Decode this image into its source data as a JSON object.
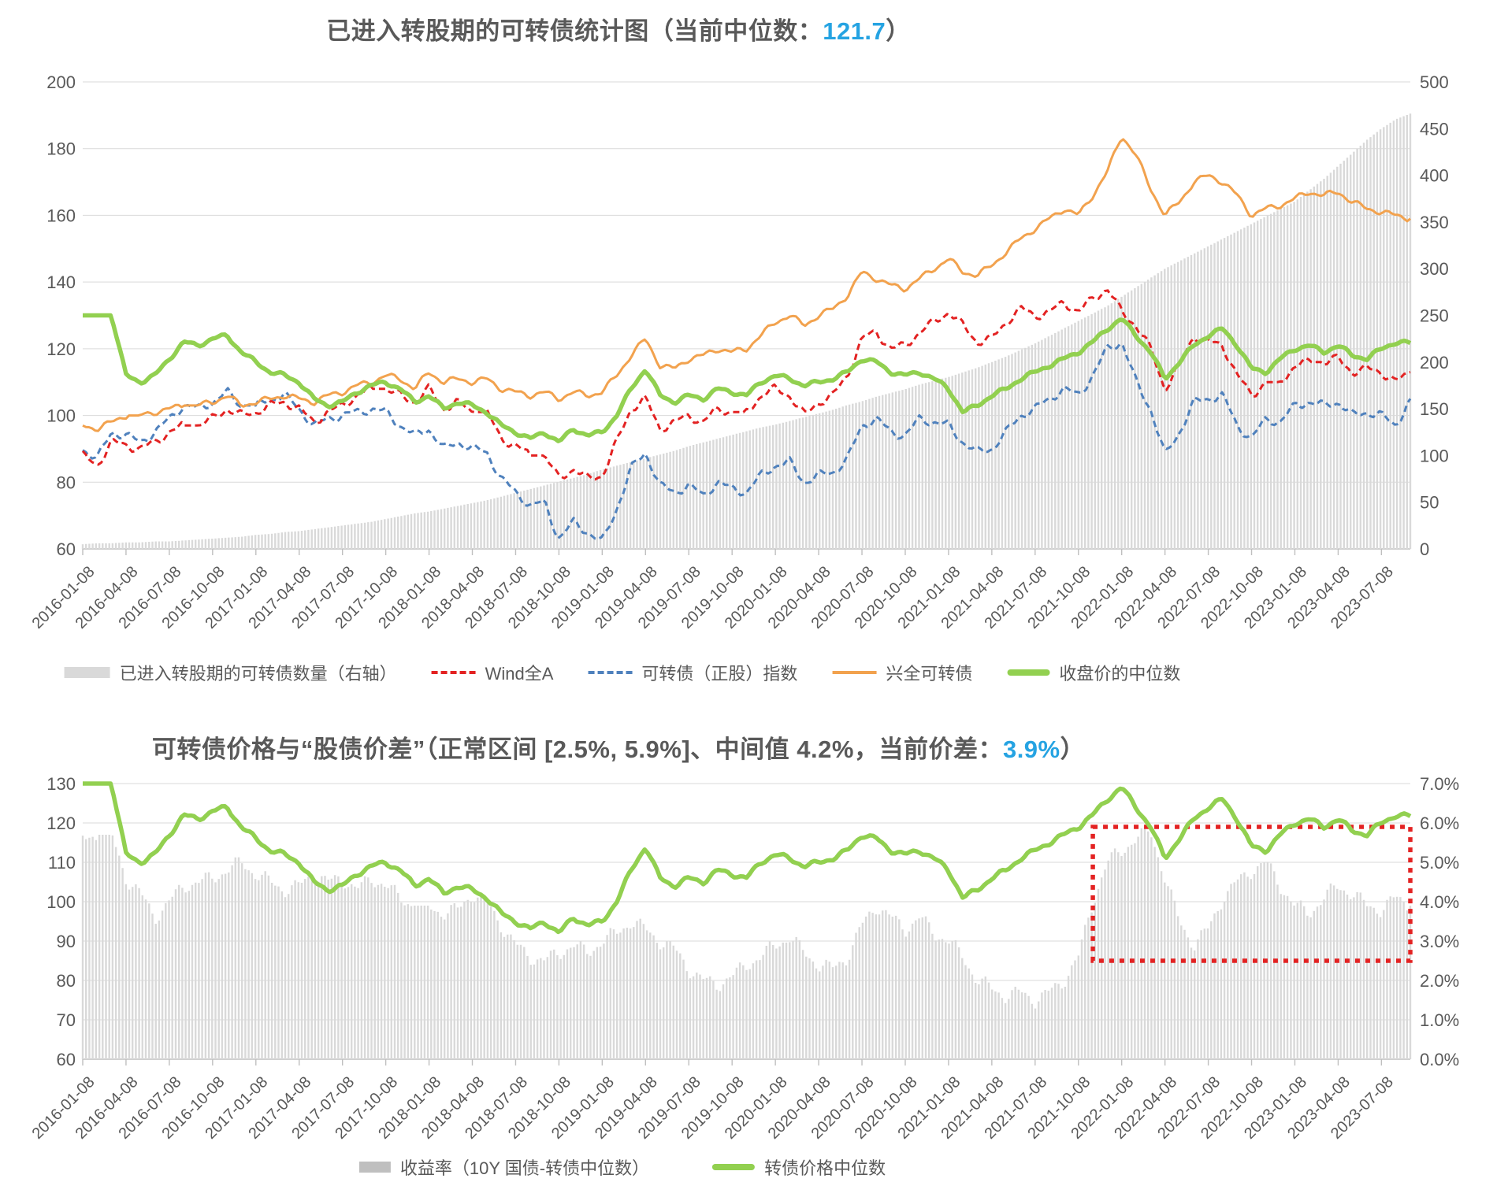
{
  "colors": {
    "text": "#595959",
    "grid": "#d9d9d9",
    "axis": "#bfbfbf",
    "bars": "#d9d9d9",
    "bars_legend_bottom": "#bfbfbf",
    "red": "#e32222",
    "blue": "#4f81bd",
    "orange": "#f2a24e",
    "green": "#92d050",
    "highlight_blue": "#25a3e2"
  },
  "top_chart": {
    "title": {
      "prefix": "已进入转股期的可转债统计图（当前中位数：",
      "highlight": "121.7",
      "suffix": "）"
    },
    "left_axis_ticks": [
      200,
      180,
      160,
      140,
      120,
      100,
      80,
      60
    ],
    "right_axis_ticks": [
      500,
      450,
      400,
      350,
      300,
      250,
      200,
      150,
      100,
      50,
      0
    ],
    "legend": [
      {
        "label": "已进入转股期的可转债数量（右轴）",
        "swatch": "bar",
        "color_key": "bars"
      },
      {
        "label": "Wind全A",
        "swatch": "dashed",
        "color_key": "red"
      },
      {
        "label": "可转债（正股）指数",
        "swatch": "dashed",
        "color_key": "blue"
      },
      {
        "label": "兴全可转债",
        "swatch": "line",
        "color_key": "orange"
      },
      {
        "label": "收盘价的中位数",
        "swatch": "thick-line",
        "color_key": "green"
      }
    ]
  },
  "bottom_chart": {
    "title": {
      "prefix": "可转债价格与“股债价差”（正常区间 [2.5%, 5.9%]、中间值 4.2%，当前价差：",
      "highlight": "3.9%",
      "suffix": "）"
    },
    "left_axis_ticks": [
      130,
      120,
      110,
      100,
      90,
      80,
      70,
      60
    ],
    "right_axis_ticks": [
      "7.0%",
      "6.0%",
      "5.0%",
      "4.0%",
      "3.0%",
      "2.0%",
      "1.0%",
      "0.0%"
    ],
    "normal_range": {
      "low_pct": 2.5,
      "high_pct": 5.9,
      "start_month": "2021-11"
    },
    "legend": [
      {
        "label": "收益率（10Y 国债-转债中位数）",
        "swatch": "bar-small",
        "color_key": "bars_legend_bottom"
      },
      {
        "label": "转债价格中位数",
        "swatch": "thick-line",
        "color_key": "green"
      }
    ]
  },
  "x_quarter_labels": [
    "2016-01-08",
    "2016-04-08",
    "2016-07-08",
    "2016-10-08",
    "2017-01-08",
    "2017-04-08",
    "2017-07-08",
    "2017-10-08",
    "2018-01-08",
    "2018-04-08",
    "2018-07-08",
    "2018-10-08",
    "2019-01-08",
    "2019-04-08",
    "2019-07-08",
    "2019-10-08",
    "2020-01-08",
    "2020-04-08",
    "2020-07-08",
    "2020-10-08",
    "2021-01-08",
    "2021-04-08",
    "2021-07-08",
    "2021-10-08",
    "2022-01-08",
    "2022-04-08",
    "2022-07-08",
    "2022-10-08",
    "2023-01-08",
    "2023-04-08",
    "2023-07-08"
  ],
  "months": [
    "2016-01",
    "2016-02",
    "2016-03",
    "2016-04",
    "2016-05",
    "2016-06",
    "2016-07",
    "2016-08",
    "2016-09",
    "2016-10",
    "2016-11",
    "2016-12",
    "2017-01",
    "2017-02",
    "2017-03",
    "2017-04",
    "2017-05",
    "2017-06",
    "2017-07",
    "2017-08",
    "2017-09",
    "2017-10",
    "2017-11",
    "2017-12",
    "2018-01",
    "2018-02",
    "2018-03",
    "2018-04",
    "2018-05",
    "2018-06",
    "2018-07",
    "2018-08",
    "2018-09",
    "2018-10",
    "2018-11",
    "2018-12",
    "2019-01",
    "2019-02",
    "2019-03",
    "2019-04",
    "2019-05",
    "2019-06",
    "2019-07",
    "2019-08",
    "2019-09",
    "2019-10",
    "2019-11",
    "2019-12",
    "2020-01",
    "2020-02",
    "2020-03",
    "2020-04",
    "2020-05",
    "2020-06",
    "2020-07",
    "2020-08",
    "2020-09",
    "2020-10",
    "2020-11",
    "2020-12",
    "2021-01",
    "2021-02",
    "2021-03",
    "2021-04",
    "2021-05",
    "2021-06",
    "2021-07",
    "2021-08",
    "2021-09",
    "2021-10",
    "2021-11",
    "2021-12",
    "2022-01",
    "2022-02",
    "2022-03",
    "2022-04",
    "2022-05",
    "2022-06",
    "2022-07",
    "2022-08",
    "2022-09",
    "2022-10",
    "2022-11",
    "2022-12",
    "2023-01",
    "2023-02",
    "2023-03",
    "2023-04",
    "2023-05",
    "2023-06",
    "2023-07",
    "2023-08",
    "2023-09"
  ],
  "chart_data": [
    {
      "type": "combo",
      "title": "已进入转股期的可转债统计图（当前中位数：121.7）",
      "x": "months",
      "left_axis": {
        "min": 60,
        "max": 200,
        "step": 20
      },
      "right_axis": {
        "min": 0,
        "max": 500,
        "step": 50
      },
      "grid": true,
      "legend_position": "bottom",
      "series": [
        {
          "name": "已进入转股期的可转债数量（右轴）",
          "type": "bar",
          "axis": "right",
          "color_key": "bars",
          "values": [
            5,
            6,
            6,
            7,
            7,
            8,
            8,
            9,
            10,
            11,
            12,
            13,
            15,
            16,
            18,
            19,
            21,
            23,
            25,
            27,
            29,
            32,
            35,
            38,
            40,
            43,
            46,
            49,
            52,
            56,
            60,
            64,
            68,
            72,
            76,
            80,
            85,
            89,
            93,
            97,
            101,
            105,
            110,
            114,
            118,
            122,
            126,
            130,
            133,
            137,
            141,
            145,
            149,
            154,
            158,
            163,
            167,
            171,
            176,
            180,
            184,
            189,
            194,
            200,
            206,
            213,
            220,
            228,
            236,
            244,
            252,
            260,
            270,
            280,
            290,
            300,
            308,
            316,
            324,
            332,
            340,
            348,
            356,
            364,
            372,
            384,
            396,
            410,
            424,
            438,
            450,
            460,
            466
          ]
        },
        {
          "name": "Wind全A",
          "type": "line",
          "style": "dashed",
          "axis": "left",
          "color_key": "red",
          "values": [
            88,
            85,
            92,
            91,
            90,
            92,
            95,
            97,
            97,
            99,
            102,
            100,
            101,
            103,
            104,
            102,
            98,
            101,
            103,
            106,
            108,
            108,
            106,
            104,
            108,
            102,
            104,
            101,
            101,
            93,
            91,
            88,
            88,
            81,
            84,
            81,
            82,
            92,
            102,
            105,
            96,
            98,
            100,
            98,
            102,
            101,
            101,
            106,
            108,
            106,
            100,
            104,
            106,
            112,
            123,
            125,
            120,
            121,
            125,
            128,
            131,
            127,
            122,
            123,
            128,
            132,
            130,
            131,
            134,
            131,
            135,
            138,
            131,
            127,
            120,
            108,
            115,
            124,
            122,
            121,
            112,
            106,
            110,
            110,
            115,
            116,
            116,
            117,
            113,
            114,
            113,
            110,
            113
          ]
        },
        {
          "name": "可转债（正股）指数",
          "type": "line",
          "style": "dashed",
          "axis": "left",
          "color_key": "blue",
          "values": [
            90,
            87,
            95,
            94,
            92,
            95,
            99,
            103,
            102,
            104,
            107,
            103,
            103,
            105,
            106,
            102,
            97,
            99,
            100,
            101,
            102,
            101,
            97,
            94,
            96,
            90,
            92,
            90,
            89,
            81,
            77,
            73,
            74,
            63,
            68,
            65,
            62,
            72,
            84,
            89,
            79,
            77,
            79,
            76,
            80,
            78,
            77,
            82,
            85,
            86,
            80,
            82,
            83,
            87,
            97,
            99,
            95,
            94,
            99,
            98,
            97,
            92,
            89,
            90,
            95,
            100,
            102,
            105,
            108,
            106,
            112,
            120,
            122,
            110,
            102,
            88,
            95,
            104,
            105,
            106,
            97,
            93,
            99,
            98,
            103,
            104,
            103,
            104,
            100,
            101,
            100,
            97,
            105
          ]
        },
        {
          "name": "兴全可转债",
          "type": "line",
          "style": "solid",
          "axis": "left",
          "color_key": "orange",
          "values": [
            97,
            96,
            98,
            100,
            100,
            101,
            102,
            103,
            103,
            104,
            106,
            103,
            104,
            105,
            106,
            105,
            104,
            106,
            107,
            109,
            110,
            112,
            111,
            108,
            113,
            110,
            111,
            110,
            111,
            108,
            107,
            106,
            107,
            105,
            107,
            106,
            107,
            112,
            118,
            123,
            115,
            114,
            117,
            118,
            120,
            119,
            120,
            124,
            128,
            130,
            127,
            130,
            132,
            136,
            143,
            141,
            139,
            138,
            141,
            144,
            147,
            143,
            142,
            145,
            149,
            153,
            156,
            159,
            162,
            160,
            166,
            173,
            184,
            178,
            168,
            160,
            164,
            170,
            172,
            170,
            166,
            160,
            162,
            163,
            165,
            167,
            166,
            167,
            164,
            162,
            161,
            160,
            159
          ]
        },
        {
          "name": "收盘价的中位数",
          "type": "line",
          "style": "thick",
          "axis": "left",
          "color_key": "green",
          "values": [
            130,
            130,
            130,
            112,
            110,
            112,
            117,
            122,
            121,
            123,
            124,
            119,
            116,
            113,
            112,
            110,
            105,
            103,
            104,
            107,
            109,
            110,
            108,
            104,
            106,
            102,
            104,
            103,
            101,
            97,
            95,
            93,
            95,
            92,
            96,
            94,
            95,
            100,
            108,
            114,
            106,
            104,
            106,
            105,
            108,
            107,
            106,
            110,
            112,
            111,
            109,
            110,
            111,
            113,
            117,
            116,
            113,
            112,
            113,
            111,
            108,
            101,
            103,
            106,
            108,
            111,
            113,
            115,
            117,
            119,
            122,
            126,
            129,
            124,
            119,
            111,
            116,
            121,
            124,
            126,
            121,
            114,
            113,
            117,
            120,
            121,
            119,
            121,
            118,
            117,
            120,
            122,
            121.7
          ]
        }
      ]
    },
    {
      "type": "combo",
      "title": "可转债价格与“股债价差”（正常区间 [2.5%, 5.9%]、中间值 4.2%，当前价差：3.9%）",
      "x": "months",
      "left_axis": {
        "min": 60,
        "max": 130,
        "step": 10
      },
      "right_axis": {
        "min": 0,
        "max": 7,
        "step": 1,
        "unit": "%"
      },
      "grid": true,
      "annotation_box": {
        "from_month": "2021-11",
        "to": "plot-right-edge",
        "low_pct": 2.5,
        "high_pct": 5.9
      },
      "series": [
        {
          "name": "收益率（10Y 国债-转债中位数）",
          "type": "bar",
          "axis": "right",
          "unit": "%",
          "color_key": "bars",
          "values": [
            5.6,
            5.7,
            5.7,
            4.6,
            4.2,
            3.6,
            4.0,
            4.4,
            4.5,
            4.6,
            4.8,
            5.0,
            4.7,
            4.5,
            4.3,
            4.4,
            4.7,
            4.5,
            4.6,
            4.3,
            4.6,
            4.4,
            4.1,
            3.9,
            3.9,
            3.7,
            3.8,
            4.2,
            4.0,
            3.4,
            2.9,
            2.6,
            2.5,
            2.7,
            2.9,
            2.7,
            3.0,
            3.2,
            3.5,
            3.3,
            3.0,
            2.8,
            2.3,
            2.0,
            1.9,
            2.1,
            2.4,
            2.6,
            2.9,
            3.1,
            2.7,
            2.4,
            2.3,
            2.6,
            3.4,
            3.9,
            3.6,
            3.3,
            3.6,
            3.2,
            3.0,
            2.6,
            2.0,
            1.8,
            1.6,
            1.7,
            1.5,
            1.7,
            2.0,
            2.6,
            4.0,
            5.0,
            5.3,
            5.6,
            5.8,
            4.6,
            3.5,
            2.9,
            3.3,
            4.1,
            4.5,
            4.8,
            5.0,
            4.4,
            3.9,
            3.7,
            4.1,
            4.4,
            4.2,
            3.9,
            3.8,
            4.1,
            3.9
          ]
        },
        {
          "name": "转债价格中位数",
          "type": "line",
          "style": "thick",
          "axis": "left",
          "color_key": "green",
          "values": [
            130,
            130,
            130,
            112,
            110,
            112,
            117,
            122,
            121,
            123,
            124,
            119,
            116,
            113,
            112,
            110,
            105,
            103,
            104,
            107,
            109,
            110,
            108,
            104,
            106,
            102,
            104,
            103,
            101,
            97,
            95,
            93,
            95,
            92,
            96,
            94,
            95,
            100,
            108,
            114,
            106,
            104,
            106,
            105,
            108,
            107,
            106,
            110,
            112,
            111,
            109,
            110,
            111,
            113,
            117,
            116,
            113,
            112,
            113,
            111,
            108,
            101,
            103,
            106,
            108,
            111,
            113,
            115,
            117,
            119,
            122,
            126,
            129,
            124,
            119,
            111,
            116,
            121,
            124,
            126,
            121,
            114,
            113,
            117,
            120,
            121,
            119,
            121,
            118,
            117,
            120,
            122,
            121.7
          ]
        }
      ]
    }
  ]
}
